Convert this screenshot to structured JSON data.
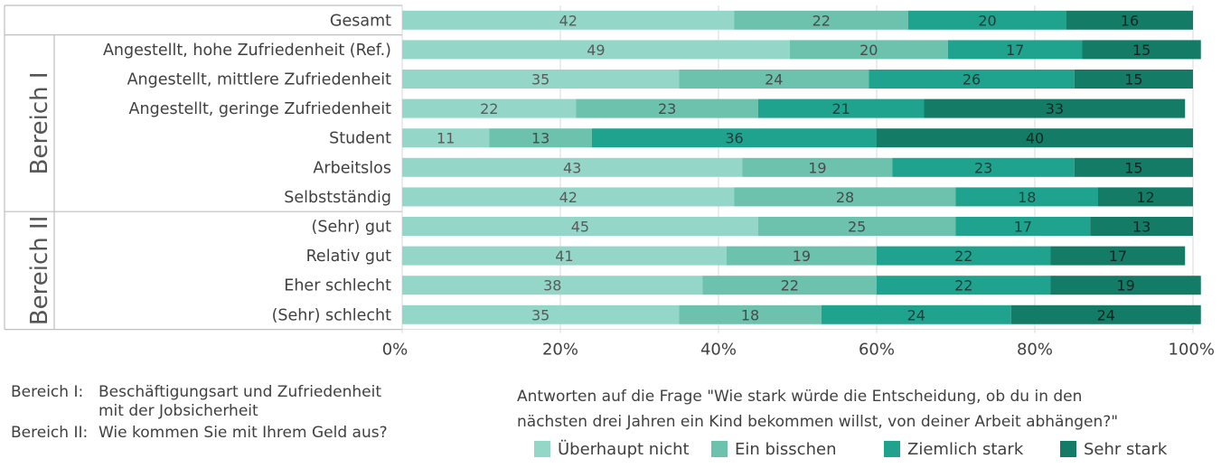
{
  "chart_data": {
    "type": "bar",
    "orientation": "horizontal",
    "stacked": true,
    "percent": true,
    "categories": [
      "Gesamt",
      "Angestellt, hohe Zufriedenheit (Ref.)",
      "Angestellt, mittlere Zufriedenheit",
      "Angestellt, geringe Zufriedenheit",
      "Student",
      "Arbeitslos",
      "Selbstständig",
      "(Sehr) gut",
      "Relativ gut",
      "Eher schlecht",
      "(Sehr) schlecht"
    ],
    "groups": [
      {
        "label": "",
        "start": 0,
        "end": 0
      },
      {
        "label": "Bereich I",
        "start": 1,
        "end": 6
      },
      {
        "label": "Bereich II",
        "start": 7,
        "end": 10
      }
    ],
    "series": [
      {
        "name": "Überhaupt nicht",
        "color": "#94d7c9",
        "label_color": "#5a5a5a",
        "values": [
          42,
          49,
          35,
          22,
          11,
          43,
          42,
          45,
          41,
          38,
          35
        ]
      },
      {
        "name": "Ein bisschen",
        "color": "#6cc2ad",
        "label_color": "#4a4a4a",
        "values": [
          22,
          20,
          24,
          23,
          13,
          19,
          28,
          25,
          19,
          22,
          18
        ]
      },
      {
        "name": "Ziemlich stark",
        "color": "#1fa38f",
        "label_color": "#1e3d38",
        "values": [
          20,
          17,
          26,
          21,
          36,
          23,
          18,
          17,
          22,
          22,
          24
        ]
      },
      {
        "name": "Sehr stark",
        "color": "#147c66",
        "label_color": "#0e2622",
        "values": [
          16,
          15,
          15,
          33,
          40,
          15,
          12,
          13,
          17,
          19,
          24
        ]
      }
    ],
    "x_ticks": [
      "0%",
      "20%",
      "40%",
      "60%",
      "80%",
      "100%"
    ],
    "xlim": [
      0,
      100
    ],
    "grid": true,
    "legend_position": "bottom-right"
  },
  "notes": {
    "bereich1_key": "Bereich I:",
    "bereich1_text_line1": "Beschäftigungsart und Zufriedenheit",
    "bereich1_text_line2": "mit der Jobsicherheit",
    "bereich2_key": "Bereich II:",
    "bereich2_text": "Wie kommen Sie mit Ihrem Geld aus?",
    "question_line1": "Antworten auf die Frage \"Wie stark würde die Entscheidung, ob du in den",
    "question_line2": "nächsten drei Jahren ein Kind bekommen willst, von deiner Arbeit abhängen?\""
  }
}
